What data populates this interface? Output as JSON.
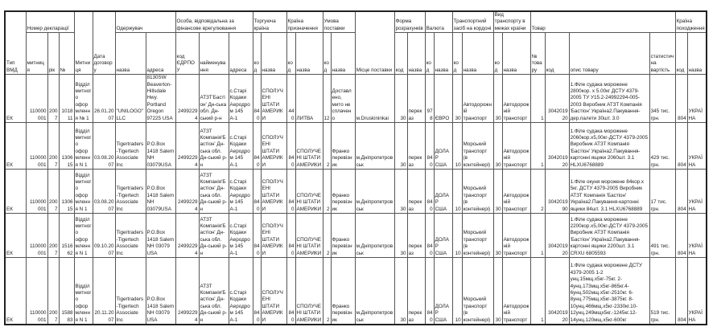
{
  "header": {
    "type_vmd": "Тип ВМД",
    "decl_number": "Номер декларації",
    "decl_customs": "митниця",
    "decl_year": "рік",
    "decl_no": "№",
    "customs": "Митниця",
    "contract_date": "Дата договору",
    "recipient": "Одержувач",
    "recipient_name": "назва",
    "recipient_address": "адреса",
    "financial": "Особа, відповідальна за фінансове врегулювання",
    "fin_code": "код ЄДРПОУ",
    "fin_name": "найменування",
    "fin_address": "адреса",
    "trade_country": "Торгуюча країна",
    "dest_country": "Країна призначення",
    "delivery_terms": "Умова поставки",
    "code": "код",
    "name": "назва",
    "delivery_place": "Місце поставки",
    "payment_form": "Форма розрахунків",
    "currency": "Валюта",
    "border_transport": "Транспортний засіб на кордоні",
    "inland_transport": "Вид транспорту в межах країни",
    "goods": "Товар",
    "goods_no": "№ товару",
    "goods_code": "код",
    "goods_desc": "опис товару",
    "stat_value": "статистична вартість",
    "origin_country": "Країна походження"
  },
  "rows": [
    {
      "type": "ЕК",
      "customs_code": "110000001",
      "year": "2007",
      "no": "101811",
      "customs": "Відділ митного оформлення № 1",
      "date": "26.01.2007",
      "rec_name": "\"UNILOGO\"LLC",
      "rec_addr": "8130SW Beaverton-Hillsdale Hwy. Portland Oregon 97225 USA",
      "fin_code": "24992294",
      "fin_name": "АТЗТ'Бастіон' Дн-ська обл. Дн-ський р-н",
      "fin_addr": "с.Старі Кодаки Аеродром 145 А-1",
      "trade_code": "840",
      "trade_name": "СПОЛУЧЕНІ ШТАТИ АМЕРИКИ",
      "dest_code": "440",
      "dest_name": "ЛИТВА",
      "terms_code": "12",
      "terms_name": "Доставлено, мито не сплачено",
      "place": "м.Druskininkai",
      "pay_code": "30",
      "pay_name": "переказ",
      "cur_code": "978",
      "cur_name": "ЄВРО",
      "bt_code": "30",
      "bt_name": "Автодорожній транспорт",
      "it_code": "30",
      "it_name": "Автодорожній транспорт",
      "goods_no": "1",
      "goods_code": "304201920",
      "desc": "1.Філе судака морожене 2800кор. х 5.00кг ДСТУ 4379-2005 ТУ У15.2-24992294-005-2003 Виробник АТЗТ Компанія 'Бастіон' Україна2.Пакування-дер.палети 30шт. 3.0",
      "value": "345 тис. грн.",
      "orig_code": "804",
      "orig_name": "УКРАЇНА"
    },
    {
      "type": "ЕК",
      "customs_code": "110000001",
      "year": "2007",
      "no": "130615",
      "customs": "Відділ митного оформлення N 1",
      "date": "03.08.2007",
      "rec_name": "Tigertraders-Tigertech Associate Inc",
      "rec_addr": "P.O.Box 1418 Salem NH 03079USA",
      "fin_code": "24992294",
      "fin_name": "АТЗТ Компанія'Бастіон' Дн-ська обл. Дн-ський р-н",
      "fin_addr": "с.Старі Кодаки Аеродром 145 А-1",
      "trade_code": "840",
      "trade_name": "СПОЛУЧЕНІ ШТАТИ АМЕРИКИ",
      "dest_code": "840",
      "dest_name": "СПОЛУЧЕНІ ШТАТИ АМЕРИКИ",
      "terms_code": "2",
      "terms_name": "Франко перевізник",
      "place": "м.Дніпропетровськ",
      "pay_code": "30",
      "pay_name": "переказ",
      "cur_code": "840",
      "cur_name": "ДОЛАР США",
      "bt_code": "10",
      "bt_name": "Морський транспорт (в контейнері)",
      "it_code": "30",
      "it_name": "Автодорожній транспорт",
      "goods_no": "1",
      "goods_code": "304201920",
      "desc": "1.Філе судака морожене 2060кор.х5,00кг-ДСТУ 4379-2005 Виробник АТЗТ Компанія 'Бастіон' Україна2.Пакування-картонні ящики 2060шт. 3.1 HLXU6768889",
      "value": "429 тис. грн.",
      "orig_code": "804",
      "orig_name": "УКРАЇНА"
    },
    {
      "type": "ЕК",
      "customs_code": "110000001",
      "year": "2007",
      "no": "130615",
      "customs": "Відділ митного оформлення N 1",
      "date": "03.08.2007",
      "rec_name": "Tigertraders-Tigertech Associate Inc",
      "rec_addr": "P.O.Box 1418 Salem NH 03079USA",
      "fin_code": "24992294",
      "fin_name": "АТЗТ Компанія'Бастіон' Дн-ська обл. Дн-ський р-н",
      "fin_addr": "с.Старі Кодаки Аеродром 145 А-1",
      "trade_code": "840",
      "trade_name": "СПОЛУЧЕНІ ШТАТИ АМЕРИКИ",
      "dest_code": "840",
      "dest_name": "СПОЛУЧЕНІ ШТАТИ АМЕРИКИ",
      "terms_code": "2",
      "terms_name": "Франко перевізник",
      "place": "м.Дніпропетровськ",
      "pay_code": "30",
      "pay_name": "переказ",
      "cur_code": "840",
      "cur_name": "ДОЛАР США",
      "bt_code": "10",
      "bt_name": "Морський транспорт (в контейнері)",
      "it_code": "30",
      "it_name": "Автодорожній транспорт",
      "goods_no": "2",
      "goods_code": "304201990",
      "desc": "1.Філе окуня морожене 84кор.х 5кг. ДСТУ 4379-2005 Виробник АТЗТ Компанія 'Бастіон' Україна2.Пакування-картонні ящики 84шт. 3.1 HLXU6768889",
      "value": "17 тис. грн.",
      "orig_code": "804",
      "orig_name": "УКРАЇНА"
    },
    {
      "type": "ЕК",
      "customs_code": "110000001",
      "year": "2007",
      "no": "151662",
      "customs": "Відділ митного оформлення N 1",
      "date": "09.10.2007",
      "rec_name": "Tigertraders-Tigertech Associate Inc",
      "rec_addr": "P.O.Box 1418 Salem NH 03079 USA",
      "fin_code": "24992294",
      "fin_name": "АТЗТ Компанія'Бастіон' Дн-ська обл. Дн-ський р-н",
      "fin_addr": "с.Старі Кодаки Аеродром 145 А-1",
      "trade_code": "840",
      "trade_name": "СПОЛУЧЕНІ ШТАТИ АМЕРИКИ",
      "dest_code": "840",
      "dest_name": "СПОЛУЧЕНІ ШТАТИ АМЕРИКИ",
      "terms_code": "2",
      "terms_name": "Франко перевізник",
      "place": "м.Дніпропетровськ",
      "pay_code": "30",
      "pay_name": "переказ",
      "cur_code": "840",
      "cur_name": "ДОЛАР США",
      "bt_code": "10",
      "bt_name": "Морський транспорт (в контейнері)",
      "it_code": "30",
      "it_name": "Автодорожній транспорт",
      "goods_no": "1",
      "goods_code": "304201920",
      "desc": "1.Філе судака морожене 2200кор.х5,00кг-ДСТУ 4379-2005 Виробник АТЗТ Компанія 'Бастіон' Україна2.Пакування-картонні ящики 2200шт. 3.1 CRXU 6805593",
      "value": "491 тис. грн.",
      "orig_code": "804",
      "orig_name": "УКРАЇНА"
    },
    {
      "type": "ЕК",
      "customs_code": "110000001",
      "year": "2007",
      "no": "158883",
      "customs": "Відділ митного оформлення N 1",
      "date": "20.11.2007",
      "rec_name": "Tigertraders-Tigertech Associate Inc",
      "rec_addr": "P.O.Box 1418 Salem NH 03079 USA",
      "fin_code": "24992294",
      "fin_name": "АТЗТ Компанія'Бастіон' Дн-ська обл. Дн-ський р-н",
      "fin_addr": "с.Старі Кодаки Аеродром 145 А-1",
      "trade_code": "840",
      "trade_name": "СПОЛУЧЕНІ ШТАТИ АМЕРИКИ",
      "dest_code": "840",
      "dest_name": "СПОЛУЧЕНІ ШТАТИ АМЕРИКИ",
      "terms_code": "2",
      "terms_name": "Франко перевізник",
      "place": "м.Дніпропетровськ",
      "pay_code": "30",
      "pay_name": "переказ",
      "cur_code": "840",
      "cur_name": "ДОЛАР США",
      "bt_code": "10",
      "bt_name": "Морський транспорт (в контейнері)",
      "it_code": "30",
      "it_name": "Автодорожній транспорт",
      "goods_no": "1",
      "goods_code": "304201920",
      "desc": "1.Філе судака морожене ДСТУ 4379-2005 1-2 унц.15мщ.х5кг-75кг. 2-4унц.173мщ.х5кг-865кг.4-6унц.502мщ.х5кг-2510кг. 6-8унц.775мщ.х5кг-3875кг. 8-10унц.466мщ.х5кг-2330кг.10-12унц.249мщх5кг.-1245кг.12-14унц.120мщ.х5кг-600кг",
      "value": "519 тис. грн.",
      "orig_code": "804",
      "orig_name": "УКРАЇНА"
    }
  ]
}
